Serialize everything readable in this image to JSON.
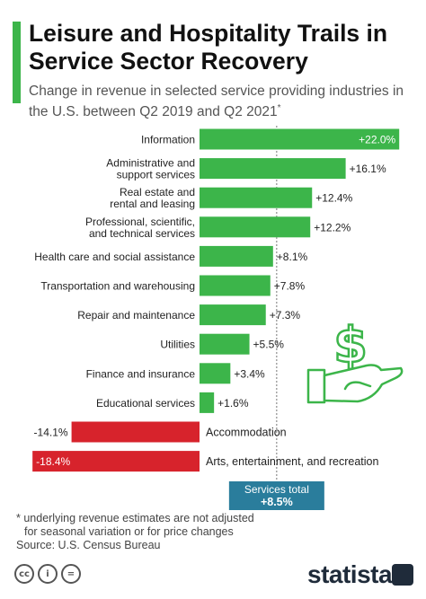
{
  "header": {
    "title": "Leisure and Hospitality Trails in Service Sector Recovery",
    "subtitle": "Change in revenue in selected service providing industries in the U.S. between Q2 2019 and Q2 2021",
    "subtitle_mark": "*"
  },
  "chart_data": {
    "type": "bar",
    "orientation": "horizontal",
    "categories": [
      "Information",
      "Administrative and support services",
      "Real estate and rental and leasing",
      "Professional, scientific, and technical services",
      "Health care and social assistance",
      "Transportation and warehousing",
      "Repair and maintenance",
      "Utilities",
      "Finance and insurance",
      "Educational services",
      "Accommodation",
      "Arts, entertainment, and recreation"
    ],
    "category_lines": [
      [
        "Information"
      ],
      [
        "Administrative and",
        "support services"
      ],
      [
        "Real estate and",
        "rental and leasing"
      ],
      [
        "Professional, scientific,",
        "and technical services"
      ],
      [
        "Health care and social assistance"
      ],
      [
        "Transportation and warehousing"
      ],
      [
        "Repair and maintenance"
      ],
      [
        "Utilities"
      ],
      [
        "Finance and insurance"
      ],
      [
        "Educational services"
      ],
      [
        "Accommodation"
      ],
      [
        "Arts, entertainment, and recreation"
      ]
    ],
    "values": [
      22.0,
      16.1,
      12.4,
      12.2,
      8.1,
      7.8,
      7.3,
      5.5,
      3.4,
      1.6,
      -14.1,
      -18.4
    ],
    "labels": [
      "+22.0%",
      "+16.1%",
      "+12.4%",
      "+12.2%",
      "+8.1%",
      "+7.8%",
      "+7.3%",
      "+5.5%",
      "+3.4%",
      "+1.6%",
      "-14.1%",
      "-18.4%"
    ],
    "xlim": [
      -18.4,
      22.0
    ],
    "reference": {
      "label": "Services total",
      "value": 8.5,
      "value_label": "+8.5%"
    },
    "colors": {
      "positive": "#3cb54a",
      "negative": "#d7232c",
      "reference": "#2a7d9c",
      "title_accent": "#3cb54a"
    }
  },
  "footer": {
    "footnote_lines": [
      "* underlying revenue estimates are not adjusted",
      "for seasonal variation or for price changes"
    ],
    "source": "Source: U.S. Census Bureau",
    "license_icons": [
      "cc",
      "i",
      "="
    ],
    "brand": "statista"
  },
  "decor": {
    "icon": "dollar-hand-icon",
    "dollar_glyph": "$"
  }
}
